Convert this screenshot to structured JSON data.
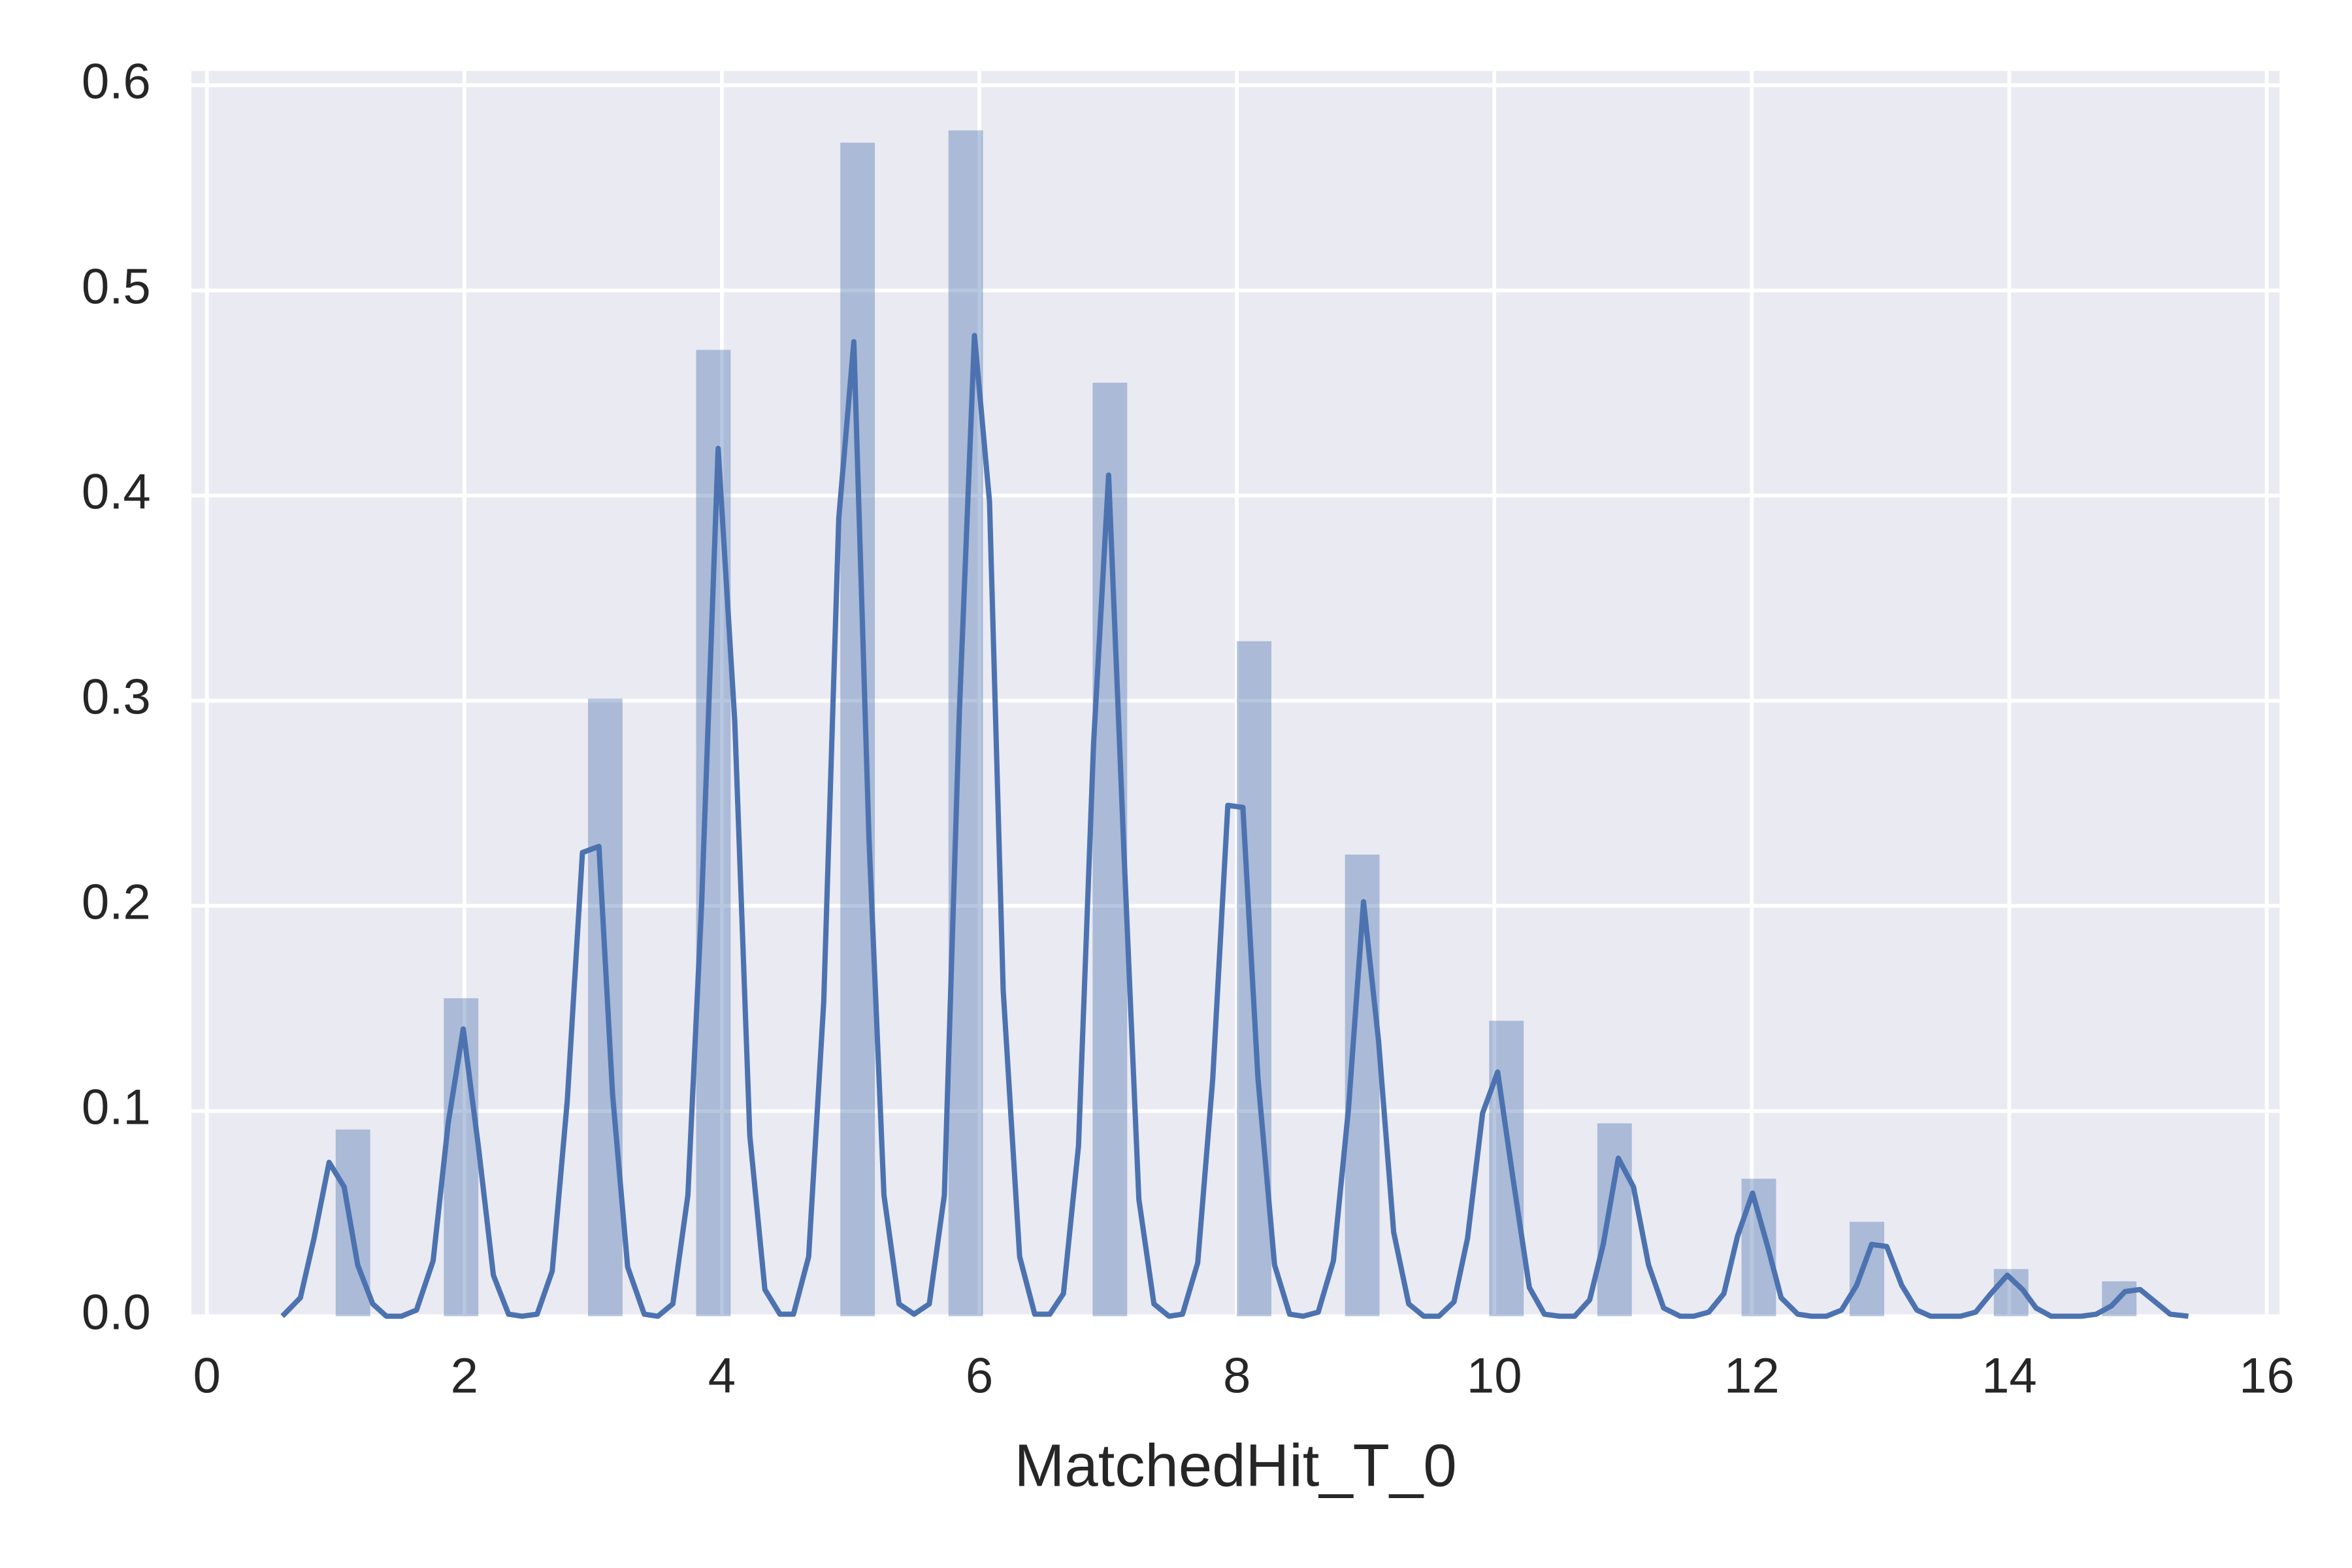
{
  "chart_data": {
    "type": "histogram",
    "xlabel": "MatchedHit_T_0",
    "bins": [
      1,
      1.28,
      1.56,
      1.84,
      2.12,
      2.4,
      2.68,
      2.96,
      3.24,
      3.52,
      3.8,
      4.08,
      4.36,
      4.64,
      4.92,
      5.2,
      5.48,
      5.76,
      6.04,
      6.32,
      6.6,
      6.88,
      7.16,
      7.44,
      7.72,
      8,
      8.28,
      8.56,
      8.84,
      9.12,
      9.4,
      9.68,
      9.96,
      10.24,
      10.52,
      10.8,
      11.08,
      11.36,
      11.64,
      11.92,
      12.2,
      12.48,
      12.76,
      13.04,
      13.32,
      13.6,
      13.88,
      14.16,
      14.44,
      14.72,
      15
    ],
    "values": [
      0.091,
      0,
      0,
      0.155,
      0,
      0,
      0,
      0.301,
      0,
      0,
      0.471,
      0,
      0,
      0,
      0.572,
      0,
      0,
      0.578,
      0,
      0,
      0,
      0.455,
      0,
      0,
      0,
      0.329,
      0,
      0,
      0.225,
      0,
      0,
      0,
      0.144,
      0,
      0,
      0.094,
      0,
      0,
      0,
      0.067,
      0,
      0,
      0.046,
      0,
      0,
      0,
      0.023,
      0,
      0,
      0.017
    ],
    "color": "#4c72b0",
    "kde": {
      "color": "#4c72b0",
      "x": [
        0.586,
        0.726,
        0.832,
        0.949,
        1.066,
        1.171,
        1.288,
        1.394,
        1.511,
        1.628,
        1.757,
        1.874,
        1.991,
        2.108,
        2.225,
        2.343,
        2.448,
        2.565,
        2.682,
        2.799,
        2.917,
        3.045,
        3.151,
        3.268,
        3.397,
        3.502,
        3.619,
        3.736,
        3.842,
        3.971,
        4.1,
        4.217,
        4.334,
        4.451,
        4.556,
        4.674,
        4.791,
        4.908,
        5.025,
        5.142,
        5.259,
        5.376,
        5.493,
        5.611,
        5.728,
        5.845,
        5.962,
        6.079,
        6.185,
        6.313,
        6.43,
        6.547,
        6.653,
        6.77,
        6.887,
        7.004,
        7.122,
        7.239,
        7.356,
        7.473,
        7.578,
        7.696,
        7.813,
        7.93,
        8.047,
        8.164,
        8.293,
        8.41,
        8.515,
        8.632,
        8.75,
        8.867,
        8.984,
        9.101,
        9.218,
        9.335,
        9.452,
        9.57,
        9.687,
        9.792,
        9.909,
        10.026,
        10.143,
        10.272,
        10.389,
        10.507,
        10.624,
        10.741,
        10.846,
        10.963,
        11.081,
        11.198,
        11.315,
        11.444,
        11.549,
        11.666,
        11.783,
        11.889,
        12.006,
        12.123,
        12.228,
        12.357,
        12.463,
        12.58,
        12.697,
        12.814,
        12.931,
        13.048,
        13.165,
        13.282,
        13.388,
        13.505,
        13.622,
        13.739,
        13.857,
        13.985,
        14.103,
        14.208,
        14.325,
        14.442,
        14.559,
        14.676,
        14.793,
        14.899,
        15.016,
        15.133,
        15.25,
        15.391
      ],
      "y": [
        0,
        0.009,
        0.038,
        0.075,
        0.063,
        0.025,
        0.006,
        0,
        0,
        0.003,
        0.027,
        0.094,
        0.14,
        0.083,
        0.02,
        0.001,
        0,
        0.001,
        0.022,
        0.105,
        0.226,
        0.229,
        0.108,
        0.024,
        0.001,
        0,
        0.006,
        0.059,
        0.2,
        0.423,
        0.29,
        0.088,
        0.013,
        0.001,
        0.001,
        0.029,
        0.153,
        0.389,
        0.475,
        0.234,
        0.059,
        0.006,
        0.001,
        0.006,
        0.059,
        0.295,
        0.478,
        0.397,
        0.159,
        0.029,
        0.001,
        0.001,
        0.011,
        0.083,
        0.279,
        0.41,
        0.228,
        0.057,
        0.006,
        0,
        0.001,
        0.026,
        0.116,
        0.249,
        0.248,
        0.116,
        0.025,
        0.001,
        0,
        0.002,
        0.027,
        0.101,
        0.202,
        0.134,
        0.041,
        0.006,
        0,
        0,
        0.007,
        0.038,
        0.099,
        0.119,
        0.068,
        0.014,
        0.001,
        0,
        0,
        0.008,
        0.035,
        0.077,
        0.063,
        0.025,
        0.004,
        0,
        0,
        0.002,
        0.011,
        0.039,
        0.06,
        0.034,
        0.009,
        0.001,
        0,
        0,
        0.003,
        0.015,
        0.035,
        0.034,
        0.015,
        0.003,
        0,
        0,
        0,
        0.002,
        0.011,
        0.02,
        0.013,
        0.004,
        0,
        0,
        0,
        0.001,
        0.005,
        0.012,
        0.013,
        0.007,
        0.001,
        0
      ]
    },
    "xlim": [
      -0.12,
      16.1
    ],
    "ylim": [
      0,
      0.607
    ],
    "xticks": [
      0,
      2,
      4,
      6,
      8,
      10,
      12,
      14,
      16
    ],
    "yticks": [
      {
        "value": 0,
        "label": "0.0"
      },
      0.1,
      0.2,
      0.3,
      0.4,
      0.5,
      0.6
    ],
    "grid": true
  }
}
